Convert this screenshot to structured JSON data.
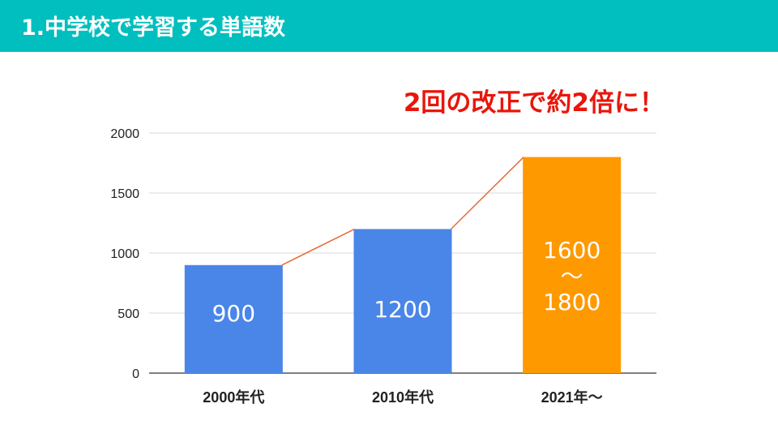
{
  "slide": {
    "title": "1.中学校で学習する単語数",
    "headline": "2回の改正で約2倍に！",
    "header_color": "#00BFBE",
    "headline_color": "#E8160C"
  },
  "chart_data": {
    "type": "bar",
    "categories": [
      "2000年代",
      "2010年代",
      "2021年〜"
    ],
    "values": [
      900,
      1200,
      1800
    ],
    "range_value": [
      1600,
      1800
    ],
    "data_labels": [
      [
        "900"
      ],
      [
        "1200"
      ],
      [
        "1600",
        "〜",
        "1800"
      ]
    ],
    "bar_colors": [
      "#4A86E8",
      "#4A86E8",
      "#FF9900"
    ],
    "trend_line": {
      "color": "#E8693A",
      "values": [
        900,
        1200,
        1800
      ]
    },
    "ylim": [
      0,
      2000
    ],
    "yticks": [
      0,
      500,
      1000,
      1500,
      2000
    ],
    "grid": true
  }
}
